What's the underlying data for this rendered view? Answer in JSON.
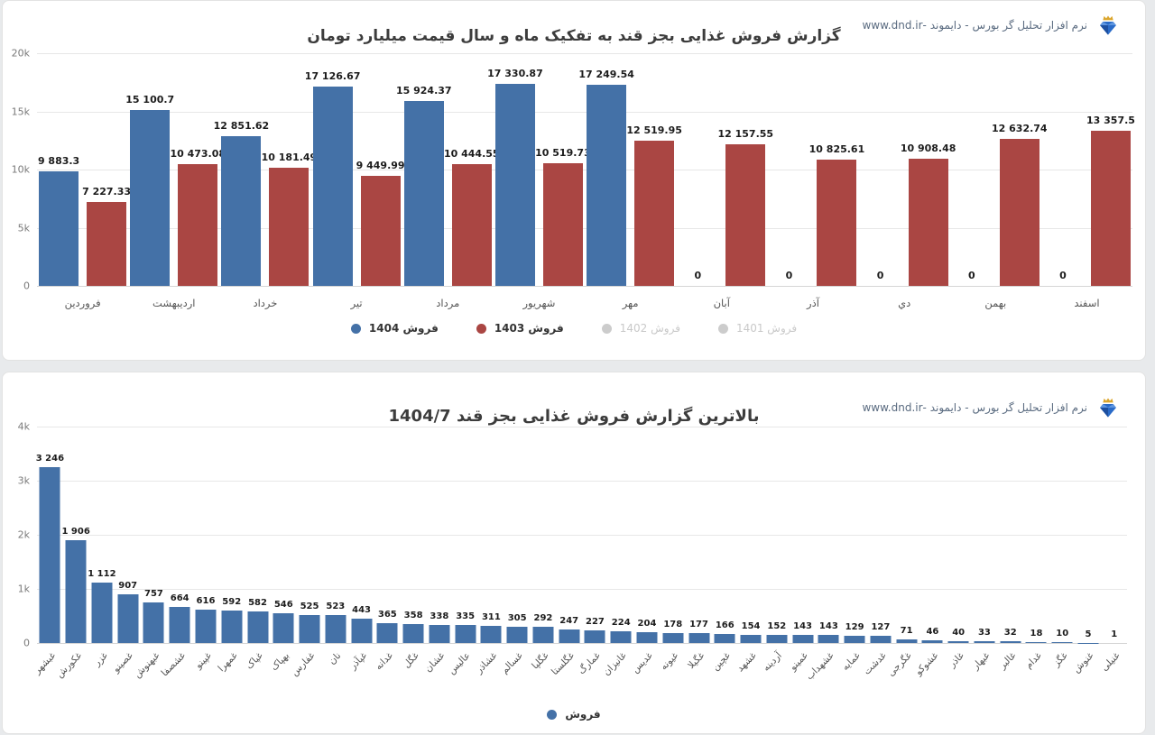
{
  "branding": {
    "text": "نرم افزار تحلیل گر بورس - دایموند -www.dnd.ir",
    "logo": "diamond-crown-icon"
  },
  "colors": {
    "series_blue": "#4471a7",
    "series_red": "#aa4643",
    "legend_disabled": "#cccccc",
    "gridline": "#e7e7e7"
  },
  "chart_data": [
    {
      "type": "bar",
      "title": "گزارش فروش غذایی بجز قند به تفکیک ماه و سال قیمت میلیارد تومان",
      "categories": [
        "فروردین",
        "اردیبهشت",
        "خرداد",
        "تیر",
        "مرداد",
        "شهریور",
        "مهر",
        "آبان",
        "آذر",
        "دي",
        "بهمن",
        "اسفند"
      ],
      "series": [
        {
          "name": "فروش 1404",
          "color": "#4471a7",
          "values": [
            9883.3,
            15100.7,
            12851.62,
            17126.67,
            15924.37,
            17330.87,
            17249.54,
            0,
            0,
            0,
            0,
            0
          ],
          "value_labels": [
            "9 883.3",
            "15 100.7",
            "12 851.62",
            "17 126.67",
            "15 924.37",
            "17 330.87",
            "17 249.54",
            "0",
            "0",
            "0",
            "0",
            "0"
          ]
        },
        {
          "name": "فروش 1403",
          "color": "#aa4643",
          "values": [
            7227.33,
            10473.08,
            10181.49,
            9449.99,
            10444.55,
            10519.73,
            12519.95,
            12157.55,
            10825.61,
            10908.48,
            12632.74,
            13357.5
          ],
          "value_labels": [
            "7 227.33",
            "10 473.08",
            "10 181.49",
            "9 449.99",
            "10 444.55",
            "10 519.73",
            "12 519.95",
            "12 157.55",
            "10 825.61",
            "10 908.48",
            "12 632.74",
            "13 357.5"
          ]
        }
      ],
      "legend": [
        {
          "label": "فروش 1404",
          "color": "#4471a7",
          "enabled": true
        },
        {
          "label": "فروش 1403",
          "color": "#aa4643",
          "enabled": true
        },
        {
          "label": "فروش 1402",
          "color": "#cccccc",
          "enabled": false
        },
        {
          "label": "فروش 1401",
          "color": "#cccccc",
          "enabled": false
        }
      ],
      "legend_position": "bottom",
      "grid": true,
      "y_axis": {
        "ticks": [
          "20k",
          "15k",
          "10k",
          "5k",
          "0"
        ],
        "max": 20000
      }
    },
    {
      "type": "bar",
      "title": "بالاترین گزارش فروش غذایی بجز قند 1404/7",
      "color": "#4471a7",
      "categories": [
        "غبشهر",
        "غکورش",
        "غزر",
        "غصینو",
        "غبهنوش",
        "غشصفا",
        "غپینو",
        "غمهرا",
        "غپاک",
        "بهپاک",
        "غفارس",
        "نان",
        "غپآذر",
        "غدانه",
        "غگل",
        "غشان",
        "عالیس",
        "غشاذر",
        "غسالم",
        "غگلپا",
        "غگلستا",
        "غمارگ",
        "غانیزان",
        "غدیس",
        "غیونه",
        "غگیلا",
        "غچین",
        "غشهد",
        "آردینه",
        "غمینو",
        "غشهداب",
        "غمایه",
        "غدشت",
        "غگرجی",
        "غشوکو",
        "غاذر",
        "غبهار",
        "غالبر",
        "غدام",
        "غگز",
        "غنوش",
        "غنیلی"
      ],
      "values": [
        3246,
        1906,
        1112,
        907,
        757,
        664,
        616,
        592,
        582,
        546,
        525,
        523,
        443,
        365,
        358,
        338,
        335,
        311,
        305,
        292,
        247,
        227,
        224,
        204,
        178,
        177,
        166,
        154,
        152,
        143,
        143,
        129,
        127,
        71,
        46,
        40,
        33,
        32,
        18,
        10,
        5,
        1
      ],
      "value_labels": [
        "3 246",
        "1 906",
        "1 112",
        "907",
        "757",
        "664",
        "616",
        "592",
        "582",
        "546",
        "525",
        "523",
        "443",
        "365",
        "358",
        "338",
        "335",
        "311",
        "305",
        "292",
        "247",
        "227",
        "224",
        "204",
        "178",
        "177",
        "166",
        "154",
        "152",
        "143",
        "143",
        "129",
        "127",
        "71",
        "46",
        "40",
        "33",
        "32",
        "18",
        "10",
        "5",
        "1"
      ],
      "series_name": "فروش",
      "legend": [
        {
          "label": "فروش",
          "color": "#4471a7",
          "enabled": true
        }
      ],
      "legend_position": "bottom",
      "grid": true,
      "y_axis": {
        "ticks": [
          "4k",
          "3k",
          "2k",
          "1k",
          "0"
        ],
        "max": 4000
      }
    }
  ]
}
